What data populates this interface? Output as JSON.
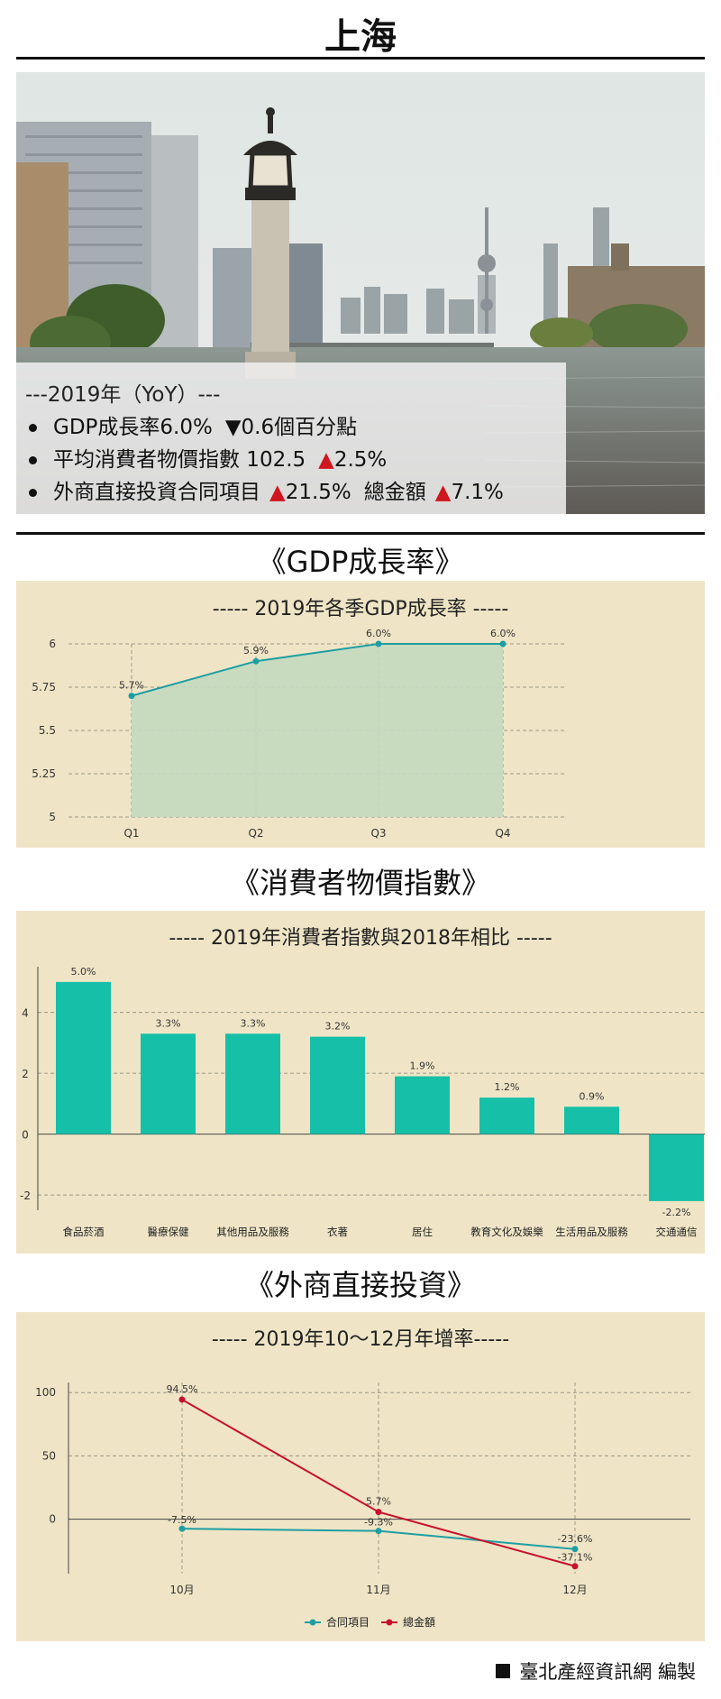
{
  "page": {
    "title": "上海",
    "footer_text": "臺北產經資訊網 編製"
  },
  "summary": {
    "heading": "---2019年（YoY）---",
    "items": [
      {
        "label": "GDP成長率6.0%",
        "change_icon": "triangle-down",
        "change": "0.6個百分點",
        "extra_label": "",
        "extra_change": ""
      },
      {
        "label": "平均消費者物價指數 102.5",
        "change_icon": "triangle-up",
        "change": "2.5%",
        "extra_label": "",
        "extra_change": ""
      },
      {
        "label": "外商直接投資合同項目",
        "change_icon": "triangle-up",
        "change": "21.5%",
        "extra_label": "總金額",
        "extra_change": "7.1%"
      }
    ]
  },
  "sections": {
    "gdp": "《GDP成長率》",
    "cpi": "《消費者物價指數》",
    "fdi": "《外商直接投資》"
  },
  "colors": {
    "panel_bg": "#efe5c6",
    "teal": "#1e9ea3",
    "area": "#c3d9be",
    "bar": "#16bfa8",
    "red": "#c8102e",
    "up_triangle": "#d0161e"
  },
  "chart_data": [
    {
      "type": "area",
      "title": "----- 2019年各季GDP成長率 -----",
      "categories": [
        "Q1",
        "Q2",
        "Q3",
        "Q4"
      ],
      "values": [
        5.7,
        5.9,
        6.0,
        6.0
      ],
      "data_labels": [
        "5.7%",
        "5.9%",
        "6.0%",
        "6.0%"
      ],
      "ylim": [
        5,
        6
      ],
      "yticks": [
        "5",
        "5.25",
        "5.5",
        "5.75",
        "6"
      ],
      "grid": true
    },
    {
      "type": "bar",
      "title": "----- 2019年消費者指數與2018年相比 -----",
      "categories": [
        "食品菸酒",
        "醫療保健",
        "其他用品及服務",
        "衣著",
        "居住",
        "教育文化及娛樂",
        "生活用品及服務",
        "交通通信"
      ],
      "values": [
        5.0,
        3.3,
        3.3,
        3.2,
        1.9,
        1.2,
        0.9,
        -2.2
      ],
      "data_labels": [
        "5.0%",
        "3.3%",
        "3.3%",
        "3.2%",
        "1.9%",
        "1.2%",
        "0.9%",
        "-2.2%"
      ],
      "ylim": [
        -2.5,
        5.5
      ],
      "yticks": [
        "-2",
        "0",
        "2",
        "4"
      ],
      "grid": true
    },
    {
      "type": "line",
      "title": "----- 2019年10～12月年增率-----",
      "categories": [
        "10月",
        "11月",
        "12月"
      ],
      "series": [
        {
          "name": "合同項目",
          "values": [
            -7.5,
            -9.3,
            -23.6
          ],
          "data_labels": [
            "-7.5%",
            "-9.3%",
            "-23.6%"
          ]
        },
        {
          "name": "總金額",
          "values": [
            94.5,
            5.7,
            -37.1
          ],
          "data_labels": [
            "94.5%",
            "5.7%",
            "-37.1%"
          ]
        }
      ],
      "ylim": [
        -43,
        108
      ],
      "yticks": [
        "0",
        "50",
        "100"
      ],
      "legend": "bottom",
      "grid": true
    }
  ]
}
